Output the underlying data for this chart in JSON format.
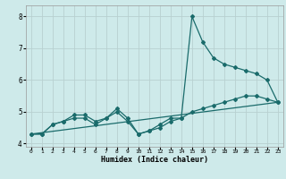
{
  "xlabel": "Humidex (Indice chaleur)",
  "ylabel": "",
  "background_color": "#ceeaea",
  "grid_color": "#b8d0d0",
  "line_color": "#1a6b6b",
  "xlim": [
    -0.5,
    23.5
  ],
  "ylim": [
    3.9,
    8.35
  ],
  "yticks": [
    4,
    5,
    6,
    7,
    8
  ],
  "xticks": [
    0,
    1,
    2,
    3,
    4,
    5,
    6,
    7,
    8,
    9,
    10,
    11,
    12,
    13,
    14,
    15,
    16,
    17,
    18,
    19,
    20,
    21,
    22,
    23
  ],
  "series1_x": [
    0,
    1,
    2,
    3,
    4,
    5,
    6,
    7,
    8,
    9,
    10,
    11,
    12,
    13,
    14,
    15,
    16,
    17,
    18,
    19,
    20,
    21,
    22,
    23
  ],
  "series1_y": [
    4.3,
    4.3,
    4.6,
    4.7,
    4.8,
    4.8,
    4.6,
    4.8,
    5.0,
    4.7,
    4.3,
    4.4,
    4.5,
    4.7,
    4.8,
    5.0,
    5.1,
    5.2,
    5.3,
    5.4,
    5.5,
    5.5,
    5.4,
    5.3
  ],
  "series2_x": [
    0,
    1,
    2,
    3,
    4,
    5,
    6,
    7,
    8,
    9,
    10,
    11,
    12,
    13,
    14,
    15,
    16,
    17,
    18,
    19,
    20,
    21,
    22,
    23
  ],
  "series2_y": [
    4.3,
    4.3,
    4.6,
    4.7,
    4.9,
    4.9,
    4.7,
    4.8,
    5.1,
    4.8,
    4.3,
    4.4,
    4.6,
    4.8,
    4.8,
    8.0,
    7.2,
    6.7,
    6.5,
    6.4,
    6.3,
    6.2,
    6.0,
    5.3
  ],
  "series3_x": [
    0,
    23
  ],
  "series3_y": [
    4.3,
    5.3
  ]
}
